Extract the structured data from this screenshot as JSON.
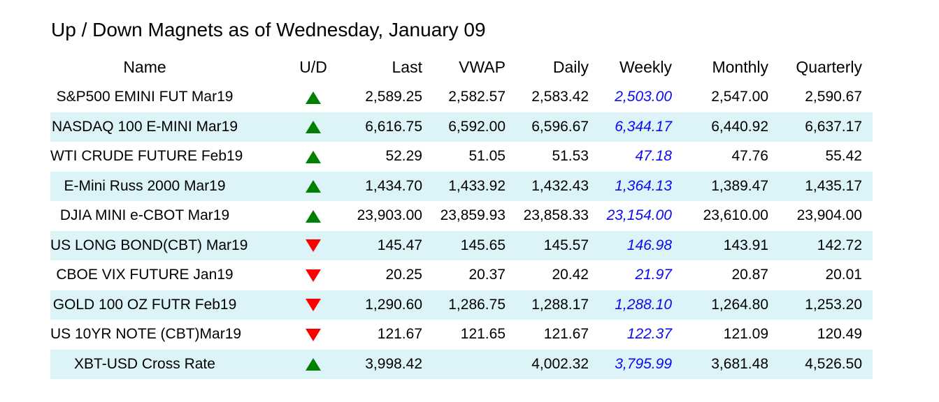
{
  "title": "Up / Down Magnets as of Wednesday, January 09",
  "table": {
    "columns": [
      "Name",
      "U/D",
      "Last",
      "VWAP",
      "Daily",
      "Weekly",
      "Monthly",
      "Quarterly"
    ],
    "colors": {
      "row_stripe": "#dcf4f8",
      "up_green": "#008000",
      "down_red": "#ff0000",
      "weekly_blue": "#0a0af0"
    },
    "rows": [
      {
        "name": "S&P500 EMINI FUT Mar19",
        "direction": "up",
        "last": "2,589.25",
        "vwap": "2,582.57",
        "daily": "2,583.42",
        "weekly": "2,503.00",
        "monthly": "2,547.00",
        "quarterly": "2,590.67"
      },
      {
        "name": "NASDAQ 100 E-MINI Mar19",
        "direction": "up",
        "last": "6,616.75",
        "vwap": "6,592.00",
        "daily": "6,596.67",
        "weekly": "6,344.17",
        "monthly": "6,440.92",
        "quarterly": "6,637.17"
      },
      {
        "name": "WTI CRUDE FUTURE Feb19",
        "direction": "up",
        "last": "52.29",
        "vwap": "51.05",
        "daily": "51.53",
        "weekly": "47.18",
        "monthly": "47.76",
        "quarterly": "55.42"
      },
      {
        "name": "E-Mini Russ 2000 Mar19",
        "direction": "up",
        "last": "1,434.70",
        "vwap": "1,433.92",
        "daily": "1,432.43",
        "weekly": "1,364.13",
        "monthly": "1,389.47",
        "quarterly": "1,435.17"
      },
      {
        "name": "DJIA MINI e-CBOT Mar19",
        "direction": "up",
        "last": "23,903.00",
        "vwap": "23,859.93",
        "daily": "23,858.33",
        "weekly": "23,154.00",
        "monthly": "23,610.00",
        "quarterly": "23,904.00"
      },
      {
        "name": "US LONG BOND(CBT) Mar19",
        "direction": "down",
        "last": "145.47",
        "vwap": "145.65",
        "daily": "145.57",
        "weekly": "146.98",
        "monthly": "143.91",
        "quarterly": "142.72"
      },
      {
        "name": "CBOE VIX FUTURE Jan19",
        "direction": "down",
        "last": "20.25",
        "vwap": "20.37",
        "daily": "20.42",
        "weekly": "21.97",
        "monthly": "20.87",
        "quarterly": "20.01"
      },
      {
        "name": "GOLD 100 OZ FUTR Feb19",
        "direction": "down",
        "last": "1,290.60",
        "vwap": "1,286.75",
        "daily": "1,288.17",
        "weekly": "1,288.10",
        "monthly": "1,264.80",
        "quarterly": "1,253.20"
      },
      {
        "name": "US 10YR NOTE (CBT)Mar19",
        "direction": "down",
        "last": "121.67",
        "vwap": "121.65",
        "daily": "121.67",
        "weekly": "122.37",
        "monthly": "121.09",
        "quarterly": "120.49"
      },
      {
        "name": "XBT-USD Cross Rate",
        "direction": "up",
        "last": "3,998.42",
        "vwap": "",
        "daily": "4,002.32",
        "weekly": "3,795.99",
        "monthly": "3,681.48",
        "quarterly": "4,526.50"
      }
    ]
  }
}
